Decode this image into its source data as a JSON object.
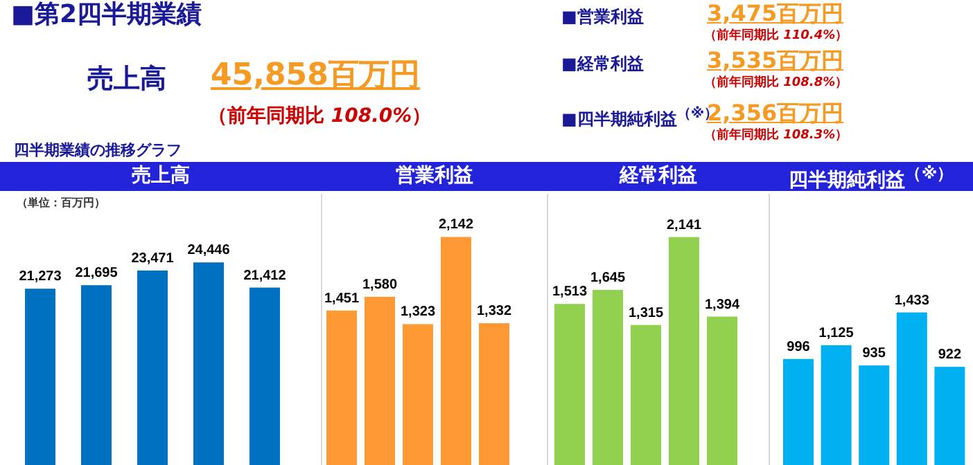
{
  "chart_data": [
    {
      "type": "other",
      "title": "■第2四半期業績",
      "annotations": [
        "売上高",
        "45,858百万円",
        "（前年同期比  *108.0%*）",
        "■営業利益",
        "3,475百万円",
        "（前年同期比  *110.4%*）",
        "■経常利益",
        "3,535百万円",
        "（前年同期比  *108.8%*）",
        "■四半期純利益$^{（※）}$",
        "2,356百万円",
        "（前年同期比  *108.3%*）",
        "四半期業績の推移グラフ"
      ]
    },
    {
      "type": "bar",
      "title": "売上高",
      "annotations": [
        "（単位：百万円）"
      ],
      "categories": [
        null,
        null,
        null,
        null,
        null
      ],
      "values": [
        21273,
        21695,
        23471,
        24446,
        21412
      ],
      "value_labels": [
        "21,273",
        "21,695",
        "23,471",
        "24,446",
        "21,412"
      ],
      "color": "#0070c0"
    },
    {
      "type": "bar",
      "title": "営業利益",
      "categories": [
        null,
        null,
        null,
        null,
        null
      ],
      "values": [
        1451,
        1580,
        1323,
        2142,
        1332
      ],
      "value_labels": [
        "1,451",
        "1,580",
        "1,323",
        "2,142",
        "1,332"
      ],
      "color": "#ff9933"
    },
    {
      "type": "bar",
      "title": "経常利益",
      "categories": [
        null,
        null,
        null,
        null,
        null
      ],
      "values": [
        1513,
        1645,
        1315,
        2141,
        1394
      ],
      "value_labels": [
        "1,513",
        "1,645",
        "1,315",
        "2,141",
        "1,394"
      ],
      "color": "#92d050"
    },
    {
      "type": "bar",
      "title": "四半期純利益$^{（※）}$",
      "categories": [
        null,
        null,
        null,
        null,
        null
      ],
      "values": [
        996,
        1125,
        935,
        1433,
        922
      ],
      "value_labels": [
        "996",
        "1,125",
        "935",
        "1,433",
        "922"
      ],
      "color": "#00b0f0"
    }
  ]
}
